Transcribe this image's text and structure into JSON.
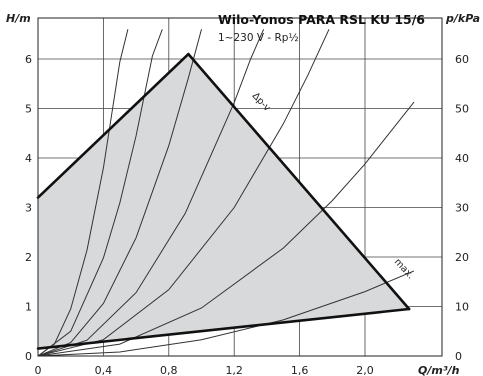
{
  "chart_data": {
    "type": "line",
    "title": "Wilo-Yonos PARA RSL KU 15/6",
    "subtitle": "1~230 V - Rp½",
    "xlabel": "Q/m³/h",
    "ylabel_left": "H/m",
    "ylabel_right": "p/kPa",
    "xlim": [
      0,
      2.3
    ],
    "ylim": [
      0,
      6.6
    ],
    "ylim_right": [
      0,
      66
    ],
    "x_ticks": [
      0,
      0.4,
      0.8,
      1.2,
      1.6,
      2.0
    ],
    "x_tick_labels": [
      "0",
      "0,4",
      "0,8",
      "1,2",
      "1,6",
      "2,0"
    ],
    "y_ticks": [
      0,
      1,
      2,
      3,
      4,
      5,
      6
    ],
    "y_tick_labels": [
      "0",
      "1",
      "2",
      "3",
      "4",
      "5",
      "6"
    ],
    "y_right_ticks": [
      0,
      10,
      20,
      30,
      40,
      50,
      60
    ],
    "y_right_tick_labels": [
      "0",
      "10",
      "20",
      "30",
      "40",
      "50",
      "60"
    ],
    "grid": true,
    "operating_area": {
      "x": [
        0,
        0.92,
        2.27,
        0
      ],
      "y": [
        3.2,
        6.1,
        0.95,
        0.15
      ]
    },
    "boundary_lines": [
      {
        "label": "Δp-v",
        "x": [
          0,
          0.92
        ],
        "y": [
          3.2,
          6.1
        ]
      },
      {
        "label": "max.",
        "x": [
          0.92,
          2.27
        ],
        "y": [
          6.1,
          0.95
        ]
      },
      {
        "label": "",
        "x": [
          0,
          2.27
        ],
        "y": [
          0.15,
          0.95
        ]
      }
    ],
    "system_curves": [
      {
        "x": [
          0,
          0.1,
          0.2,
          0.3,
          0.4,
          0.5,
          0.55
        ],
        "y": [
          0,
          0.24,
          0.95,
          2.14,
          3.8,
          5.94,
          6.6
        ]
      },
      {
        "x": [
          0,
          0.2,
          0.4,
          0.5,
          0.6,
          0.7,
          0.76
        ],
        "y": [
          0,
          0.5,
          1.98,
          3.09,
          4.45,
          6.06,
          6.6
        ]
      },
      {
        "x": [
          0,
          0.2,
          0.4,
          0.6,
          0.8,
          0.92,
          1.0
        ],
        "y": [
          0,
          0.27,
          1.06,
          2.39,
          4.25,
          5.62,
          6.6
        ]
      },
      {
        "x": [
          0,
          0.3,
          0.6,
          0.9,
          1.2,
          1.3,
          1.38
        ],
        "y": [
          0,
          0.32,
          1.28,
          2.88,
          5.12,
          6.0,
          6.6
        ]
      },
      {
        "x": [
          0,
          0.4,
          0.8,
          1.2,
          1.5,
          1.65,
          1.78
        ],
        "y": [
          0,
          0.33,
          1.34,
          3.0,
          4.69,
          5.67,
          6.6
        ]
      },
      {
        "x": [
          0,
          0.5,
          1.0,
          1.5,
          1.8,
          2.0,
          2.3
        ],
        "y": [
          0,
          0.24,
          0.97,
          2.18,
          3.14,
          3.88,
          5.13
        ]
      },
      {
        "x": [
          0,
          0.5,
          1.0,
          1.5,
          2.0,
          2.3
        ],
        "y": [
          0,
          0.08,
          0.33,
          0.73,
          1.3,
          1.72
        ]
      }
    ],
    "annotations": [
      "Δp-v",
      "max."
    ]
  }
}
